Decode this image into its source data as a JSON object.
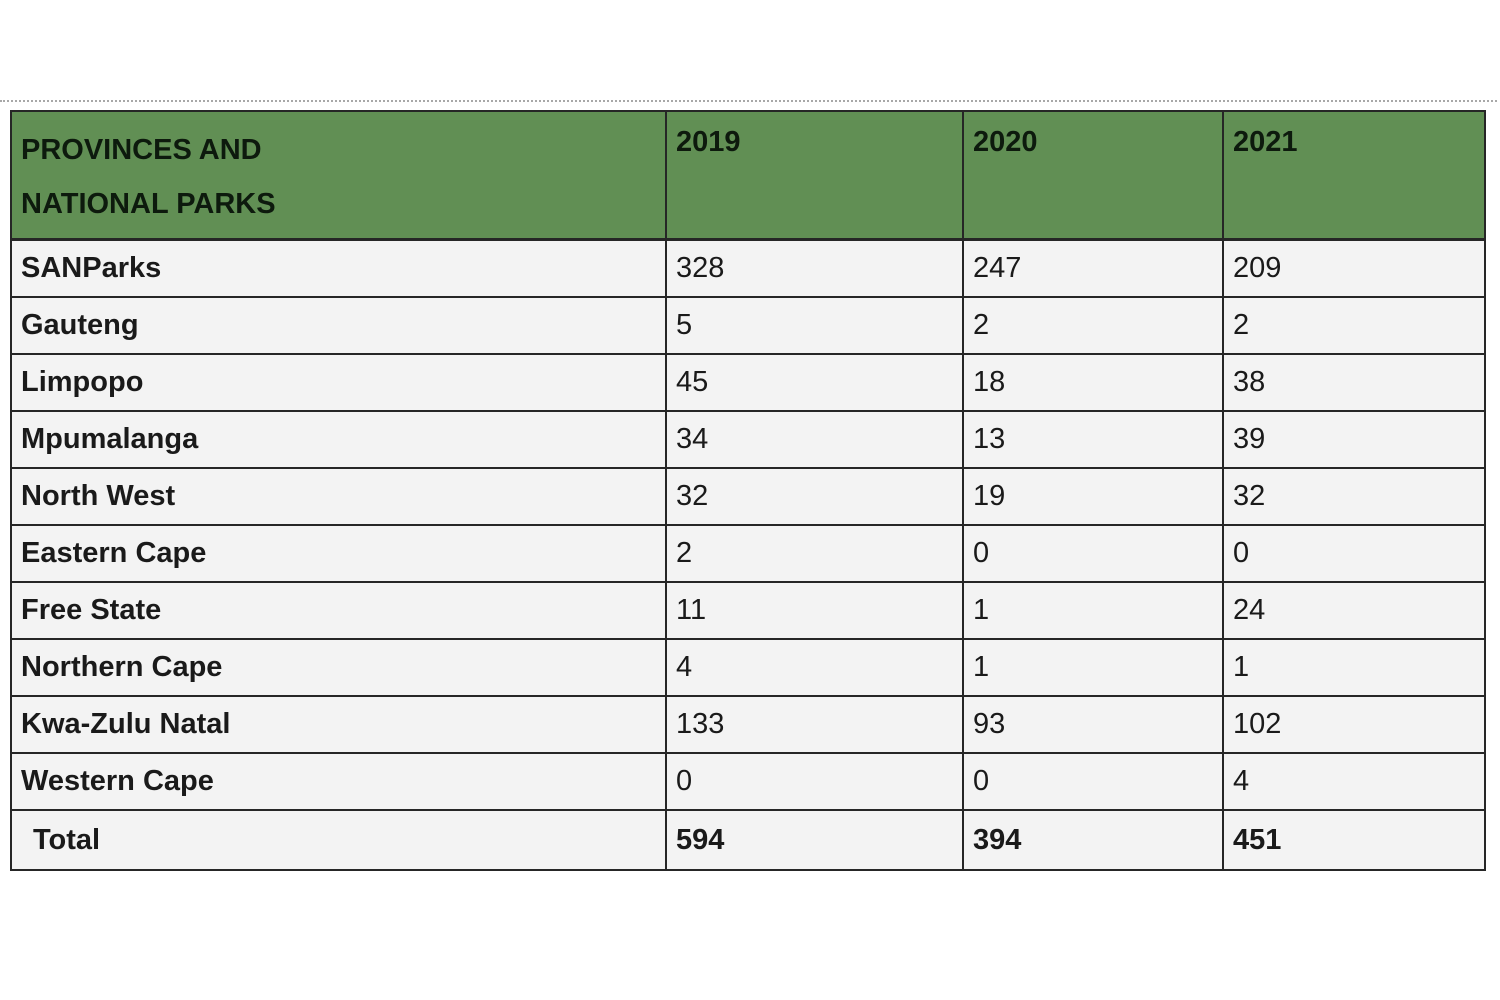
{
  "table": {
    "header": {
      "col0_line1": "PROVINCES AND",
      "col0_line2": "NATIONAL PARKS",
      "years": [
        "2019",
        "2020",
        "2021"
      ]
    },
    "rows": [
      {
        "label": "SANParks",
        "values": [
          "328",
          "247",
          "209"
        ]
      },
      {
        "label": "Gauteng",
        "values": [
          "5",
          "2",
          "2"
        ]
      },
      {
        "label": "Limpopo",
        "values": [
          "45",
          "18",
          "38"
        ]
      },
      {
        "label": "Mpumalanga",
        "values": [
          "34",
          "13",
          "39"
        ]
      },
      {
        "label": "North West",
        "values": [
          "32",
          "19",
          "32"
        ]
      },
      {
        "label": "Eastern Cape",
        "values": [
          "2",
          "0",
          "0"
        ]
      },
      {
        "label": "Free State",
        "values": [
          "11",
          "1",
          "24"
        ]
      },
      {
        "label": "Northern Cape",
        "values": [
          "4",
          "1",
          "1"
        ]
      },
      {
        "label": "Kwa-Zulu Natal",
        "values": [
          "133",
          "93",
          "102"
        ]
      },
      {
        "label": "Western Cape",
        "values": [
          "0",
          "0",
          "4"
        ]
      }
    ],
    "total": {
      "label": "Total",
      "values": [
        "594",
        "394",
        "451"
      ]
    }
  },
  "colors": {
    "header_green": "#618f54",
    "row_background": "#f3f3f3",
    "border": "#262626"
  }
}
